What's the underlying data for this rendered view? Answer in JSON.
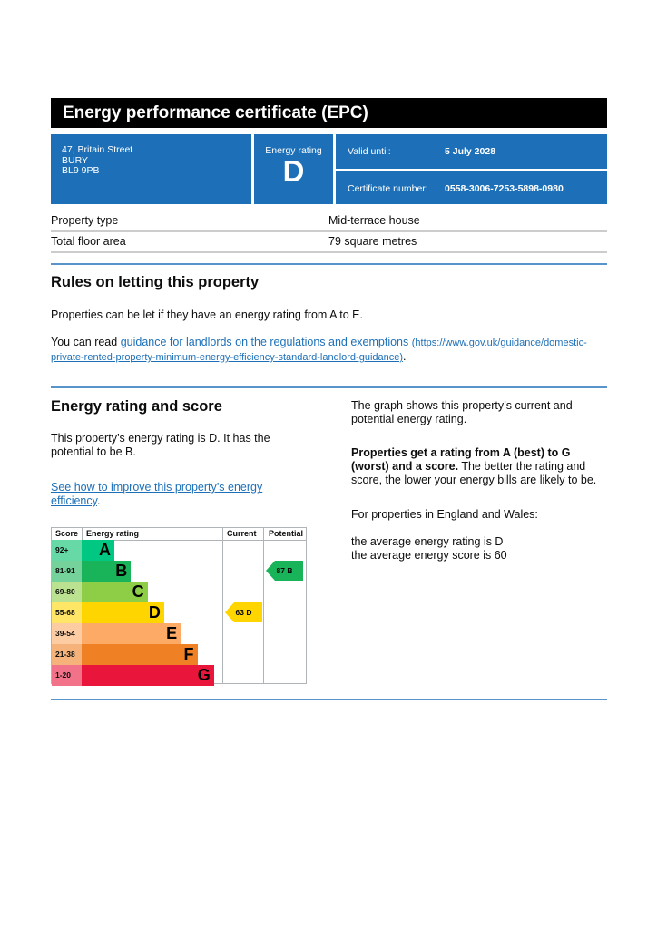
{
  "title": "Energy performance certificate (EPC)",
  "address": {
    "line1": "47, Britain Street",
    "line2": "BURY",
    "line3": "BL9 9PB"
  },
  "rating_box": {
    "label": "Energy rating",
    "value": "D"
  },
  "valid_until": {
    "label": "Valid until:",
    "value": "5 July 2028"
  },
  "certificate": {
    "label": "Certificate number:",
    "value": "0558-3006-7253-5898-0980"
  },
  "property": {
    "type_label": "Property type",
    "type_value": "Mid-terrace house",
    "area_label": "Total floor area",
    "area_value": "79 square metres"
  },
  "rules": {
    "heading": "Rules on letting this property",
    "p1": "Properties can be let if they have an energy rating from A to E.",
    "p2_prefix": "You can read ",
    "p2_link": "guidance for landlords on the regulations and exemptions",
    "p2_url": "(https://www.gov.uk/guidance/domestic-private-rented-property-minimum-energy-efficiency-standard-landlord-guidance)",
    "p2_suffix": "."
  },
  "energy": {
    "heading": "Energy rating and score",
    "p1": "This property’s energy rating is D. It has the potential to be B.",
    "link": "See how to improve this property’s energy efficiency",
    "link_suffix": ".",
    "right_p1": "The graph shows this property’s current and potential energy rating.",
    "right_p2_bold": "Properties get a rating from A (best) to G (worst) and a score.",
    "right_p2": " The better the rating and score, the lower your energy bills are likely to be.",
    "right_p3": "For properties in England and Wales:",
    "right_p4a": "the average energy rating is D",
    "right_p4b": "the average energy score is 60"
  },
  "chart_data": {
    "type": "table",
    "headers": {
      "score": "Score",
      "rating": "Energy rating",
      "current": "Current",
      "potential": "Potential"
    },
    "bands": [
      {
        "letter": "A",
        "range": "92+",
        "color": "#00c781",
        "score_bg": "#66d9a7"
      },
      {
        "letter": "B",
        "range": "81-91",
        "color": "#19b459",
        "score_bg": "#75d29b"
      },
      {
        "letter": "C",
        "range": "69-80",
        "color": "#8dce46",
        "score_bg": "#bbe290"
      },
      {
        "letter": "D",
        "range": "55-68",
        "color": "#ffd500",
        "score_bg": "#ffe666"
      },
      {
        "letter": "E",
        "range": "39-54",
        "color": "#fcaa65",
        "score_bg": "#fdcca3"
      },
      {
        "letter": "F",
        "range": "21-38",
        "color": "#ef8023",
        "score_bg": "#f5b37b"
      },
      {
        "letter": "G",
        "range": "1-20",
        "color": "#e9153b",
        "score_bg": "#f27389"
      }
    ],
    "current": {
      "score": 63,
      "letter": "D",
      "label": "63  D"
    },
    "potential": {
      "score": 87,
      "letter": "B",
      "label": "87  B"
    }
  }
}
